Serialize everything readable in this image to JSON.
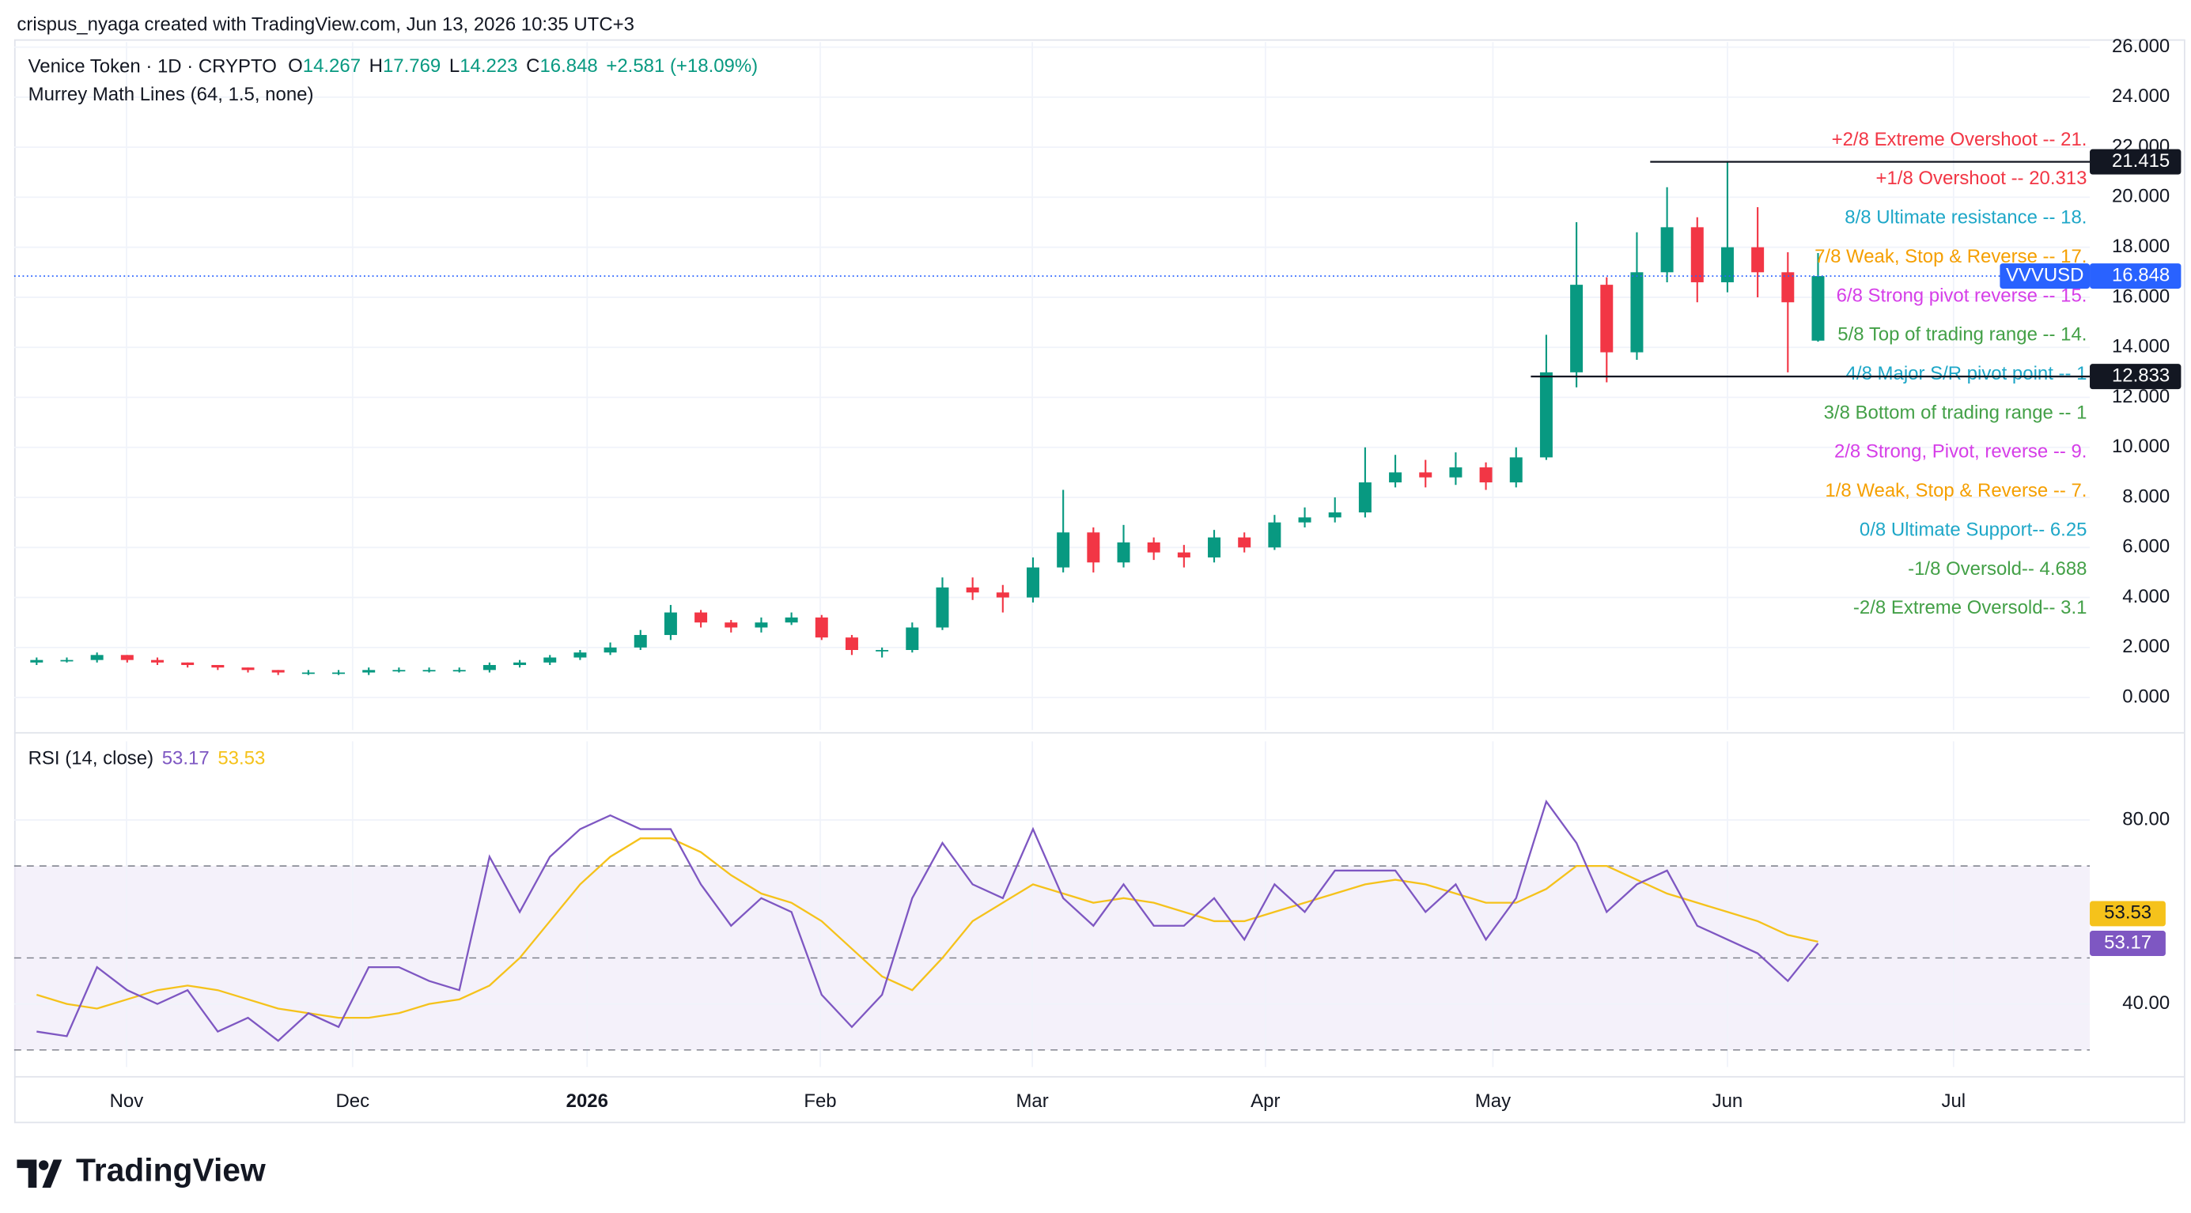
{
  "header": {
    "credit": "crispus_nyaga created with TradingView.com, Jun 13, 2026 10:35 UTC+3"
  },
  "footer": {
    "logo": "TradingView"
  },
  "chart_data": [
    {
      "type": "candlestick",
      "title": "Venice Token · 1D · CRYPTO",
      "indicator": "Murrey Math Lines (64, 1.5, none)",
      "ohlc_letters": [
        "O",
        "H",
        "L",
        "C"
      ],
      "change_label": "+2.581 (+18.09%)",
      "symbol": "VVVUSD",
      "up_color": "#089981",
      "down_color": "#f23645",
      "open": [
        1.4,
        1.5,
        1.5,
        1.7,
        1.5,
        1.4,
        1.3,
        1.2,
        1.1,
        1.0,
        1.0,
        1.0,
        1.1,
        1.1,
        1.1,
        1.1,
        1.3,
        1.4,
        1.6,
        1.8,
        2.0,
        2.5,
        3.4,
        3.0,
        2.8,
        3.0,
        3.2,
        2.4,
        1.9,
        1.9,
        2.8,
        4.4,
        4.2,
        4.0,
        5.2,
        6.6,
        5.4,
        6.2,
        5.8,
        5.6,
        6.4,
        6.0,
        7.0,
        7.2,
        7.4,
        8.6,
        9.0,
        8.8,
        9.2,
        8.6,
        9.6,
        13.0,
        16.5,
        13.8,
        17.0,
        18.8,
        16.6,
        18.0,
        17.0,
        14.267
      ],
      "high": [
        1.6,
        1.6,
        1.8,
        1.7,
        1.6,
        1.4,
        1.3,
        1.2,
        1.1,
        1.1,
        1.1,
        1.2,
        1.2,
        1.2,
        1.2,
        1.4,
        1.5,
        1.7,
        1.9,
        2.2,
        2.7,
        3.7,
        3.5,
        3.1,
        3.2,
        3.4,
        3.3,
        2.5,
        2.0,
        3.0,
        4.8,
        4.8,
        4.5,
        5.6,
        8.3,
        6.8,
        6.9,
        6.4,
        6.1,
        6.7,
        6.6,
        7.3,
        7.6,
        8.0,
        10.0,
        9.7,
        9.5,
        9.8,
        9.4,
        10.0,
        14.5,
        19.0,
        16.8,
        18.6,
        20.4,
        19.2,
        21.4,
        19.6,
        17.8,
        17.769
      ],
      "low": [
        1.3,
        1.4,
        1.4,
        1.4,
        1.3,
        1.2,
        1.1,
        1.0,
        0.9,
        0.9,
        0.9,
        0.9,
        1.0,
        1.0,
        1.0,
        1.0,
        1.2,
        1.3,
        1.5,
        1.7,
        1.9,
        2.3,
        2.8,
        2.6,
        2.6,
        2.9,
        2.3,
        1.7,
        1.6,
        1.8,
        2.7,
        3.9,
        3.4,
        3.8,
        5.0,
        5.0,
        5.2,
        5.5,
        5.2,
        5.4,
        5.8,
        5.9,
        6.8,
        7.0,
        7.2,
        8.4,
        8.4,
        8.5,
        8.3,
        8.4,
        9.5,
        12.4,
        12.6,
        13.5,
        16.6,
        15.8,
        16.2,
        16.0,
        13.0,
        14.223
      ],
      "close": [
        1.5,
        1.5,
        1.7,
        1.5,
        1.4,
        1.3,
        1.2,
        1.1,
        1.0,
        1.0,
        1.0,
        1.1,
        1.1,
        1.1,
        1.1,
        1.3,
        1.4,
        1.6,
        1.8,
        2.0,
        2.5,
        3.4,
        3.0,
        2.8,
        3.0,
        3.2,
        2.4,
        1.9,
        1.9,
        2.8,
        4.4,
        4.2,
        4.0,
        5.2,
        6.6,
        5.4,
        6.2,
        5.8,
        5.6,
        6.4,
        6.0,
        7.0,
        7.2,
        7.4,
        8.6,
        9.0,
        8.8,
        9.2,
        8.6,
        9.6,
        13.0,
        16.5,
        13.8,
        17.0,
        18.8,
        16.6,
        18.0,
        17.0,
        15.8,
        16.848
      ],
      "ylim": [
        -1.3,
        26.2
      ],
      "yticks": [
        {
          "value": 0,
          "label": "0.000"
        },
        {
          "value": 2,
          "label": "2.000"
        },
        {
          "value": 4,
          "label": "4.000"
        },
        {
          "value": 6,
          "label": "6.000"
        },
        {
          "value": 8,
          "label": "8.000"
        },
        {
          "value": 10,
          "label": "10.000"
        },
        {
          "value": 12,
          "label": "12.000"
        },
        {
          "value": 14,
          "label": "14.000"
        },
        {
          "value": 16,
          "label": "16.000"
        },
        {
          "value": 18,
          "label": "18.000"
        },
        {
          "value": 20,
          "label": "20.000"
        },
        {
          "value": 22,
          "label": "22.000"
        },
        {
          "value": 24,
          "label": "24.000"
        },
        {
          "value": 26,
          "label": "26.000"
        }
      ],
      "hlines": [
        21.415,
        12.833
      ],
      "annotations": [
        {
          "text": "+2/8 Extreme Overshoot --  21.",
          "color": "#f23645"
        },
        {
          "text": "+1/8 Overshoot --  20.313",
          "color": "#f23645"
        },
        {
          "text": "8/8 Ultimate resistance --  18.",
          "color": "#1ea7c8"
        },
        {
          "text": "7/8 Weak, Stop & Reverse --  17.",
          "color": "#f59f00"
        },
        {
          "text": "6/8 Strong pivot reverse --  15.",
          "color": "#d63ee8"
        },
        {
          "text": "5/8 Top of trading range --  14.",
          "color": "#43a047"
        },
        {
          "text": "4/8 Major S/R pivot point --  1",
          "color": "#1ea7c8"
        },
        {
          "text": "3/8 Bottom of trading range --  1",
          "color": "#43a047"
        },
        {
          "text": "2/8 Strong, Pivot, reverse --  9.",
          "color": "#d63ee8"
        },
        {
          "text": "1/8 Weak, Stop & Reverse --  7.",
          "color": "#f59f00"
        },
        {
          "text": "0/8 Ultimate Support--  6.25",
          "color": "#1ea7c8"
        },
        {
          "text": "-1/8 Oversold--  4.688",
          "color": "#43a047"
        },
        {
          "text": "-2/8 Extreme Oversold--  3.1",
          "color": "#43a047"
        }
      ],
      "grid": true
    },
    {
      "type": "line",
      "title": "RSI (14, close)",
      "series": [
        {
          "color": "#7e57c2",
          "values": [
            34,
            33,
            48,
            43,
            40,
            43,
            34,
            37,
            32,
            38,
            35,
            48,
            48,
            45,
            43,
            72,
            60,
            72,
            78,
            81,
            78,
            78,
            66,
            57,
            63,
            60,
            42,
            35,
            42,
            63,
            75,
            66,
            63,
            78,
            63,
            57,
            66,
            57,
            57,
            63,
            54,
            66,
            60,
            69,
            69,
            69,
            60,
            66,
            54,
            63,
            84,
            75,
            60,
            66,
            69,
            57,
            54,
            51,
            45,
            53.17
          ]
        },
        {
          "color": "#f5c21b",
          "values": [
            42,
            40,
            39,
            41,
            43,
            44,
            43,
            41,
            39,
            38,
            37,
            37,
            38,
            40,
            41,
            44,
            50,
            58,
            66,
            72,
            76,
            76,
            73,
            68,
            64,
            62,
            58,
            52,
            46,
            43,
            50,
            58,
            62,
            66,
            64,
            62,
            63,
            62,
            60,
            58,
            58,
            60,
            62,
            64,
            66,
            67,
            66,
            64,
            62,
            62,
            65,
            70,
            70,
            67,
            64,
            62,
            60,
            58,
            55,
            53.53
          ]
        }
      ],
      "ylim": [
        26.3,
        97.1
      ],
      "yticks": [
        {
          "value": 40,
          "label": "40.00"
        },
        {
          "value": 80,
          "label": "80.00"
        }
      ],
      "levels": [
        30,
        50,
        70
      ],
      "band_color": "#ede7f6",
      "xtick_labels": [
        "Nov",
        "Dec",
        "2026",
        "Feb",
        "Mar",
        "Apr",
        "May",
        "Jun",
        "Jul"
      ],
      "grid": true
    }
  ]
}
